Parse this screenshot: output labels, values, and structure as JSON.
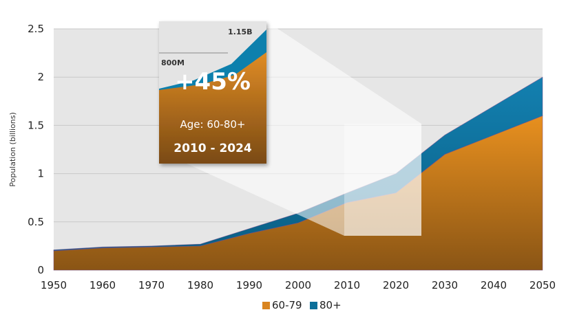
{
  "chart_data": {
    "type": "area",
    "stacked": true,
    "x": [
      1950,
      1960,
      1970,
      1980,
      1990,
      2000,
      2010,
      2020,
      2030,
      2040,
      2050
    ],
    "series": [
      {
        "name": "60-79",
        "color": "#d9841f",
        "values": [
          0.2,
          0.23,
          0.24,
          0.25,
          0.38,
          0.49,
          0.7,
          0.8,
          1.2,
          1.4,
          1.6
        ]
      },
      {
        "name": "80+",
        "color": "#0b6f9a",
        "values": [
          0.01,
          0.01,
          0.01,
          0.02,
          0.05,
          0.1,
          0.1,
          0.2,
          0.2,
          0.3,
          0.4
        ]
      }
    ],
    "ylabel": "Population (billions)",
    "xlabel": "",
    "ylim": [
      0,
      2.5
    ],
    "yticks": [
      "0",
      "0.5",
      "1",
      "1.5",
      "2",
      "2.5"
    ],
    "xticks": [
      "1950",
      "1960",
      "1970",
      "1980",
      "1990",
      "2000",
      "2010",
      "2020",
      "2030",
      "2040",
      "2050"
    ],
    "grid": true,
    "legend_position": "bottom",
    "callout": {
      "start_label": "800M",
      "end_label": "1.15B",
      "headline": "+45%",
      "subtitle": "Age: 60-80+",
      "range": "2010 - 2024"
    }
  }
}
